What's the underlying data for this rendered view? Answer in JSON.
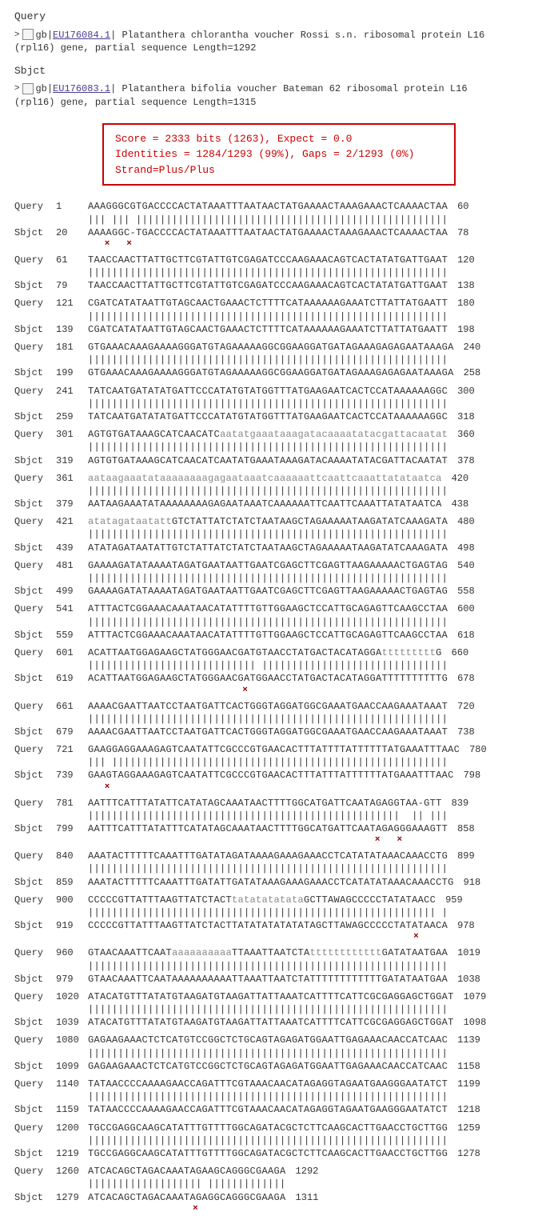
{
  "query_section": {
    "label": "Query",
    "caret": ">",
    "accession_prefix": "gb|",
    "accession": "EU176084.1",
    "accession_suffix": "|",
    "desc_line1": "  Platanthera chlorantha voucher Rossi s.n. ribosomal protein L16",
    "desc_line2": "(rpl16) gene, partial sequence   Length=1292"
  },
  "sbjct_section": {
    "label": "Sbjct",
    "caret": ">",
    "accession_prefix": "gb|",
    "accession": "EU176083.1",
    "accession_suffix": "|",
    "desc_line1": "  Platanthera bifolia voucher Bateman 62 ribosomal protein L16",
    "desc_line2": "(rpl16) gene, partial sequence   Length=1315"
  },
  "score_box": {
    "line1": "Score = 2333 bits (1263),  Expect = 0.0",
    "line2": "Identities = 1284/1293 (99%), Gaps = 2/1293 (0%)",
    "line3": "Strand=Plus/Plus"
  },
  "columns": {
    "origin_query": "Query",
    "origin_sbjct": "Sbjct"
  },
  "blocks": [
    {
      "q_start": 1,
      "q_seq": "AAAGGGCGTGACCCCACTATAAATTTAATAACTATGAAAACTAAAGAAACTCAAAACTAA",
      "q_end": 60,
      "match": "||| ||| ||||||||||||||||||||||||||||||||||||||||||||||||||||",
      "s_start": 20,
      "s_seq": "AAAAGGC-TGACCCCACTATAAATTTAATAACTATGAAAACTAAAGAAACTCAAAACTAA",
      "s_end": 78,
      "x_marks": [
        3,
        7
      ]
    },
    {
      "q_start": 61,
      "q_seq": "TAACCAACTTATTGCTTCGTATTGTCGAGATCCCAAGAAACAGTCACTATATGATTGAAT",
      "q_end": 120,
      "match": "||||||||||||||||||||||||||||||||||||||||||||||||||||||||||||",
      "s_start": 79,
      "s_seq": "TAACCAACTTATTGCTTCGTATTGTCGAGATCCCAAGAAACAGTCACTATATGATTGAAT",
      "s_end": 138
    },
    {
      "q_start": 121,
      "q_seq": "CGATCATATAATTGTAGCAACTGAAACTCTTTTCATAAAAAAGAAATCTTATTATGAATT",
      "q_end": 180,
      "match": "||||||||||||||||||||||||||||||||||||||||||||||||||||||||||||",
      "s_start": 139,
      "s_seq": "CGATCATATAATTGTAGCAACTGAAACTCTTTTCATAAAAAAGAAATCTTATTATGAATT",
      "s_end": 198
    },
    {
      "q_start": 181,
      "q_seq": "GTGAAACAAAGAAAAGGGATGTAGAAAAAGGCGGAAGGATGATAGAAAGAGAGAATAAAGA",
      "q_end": 240,
      "match": "||||||||||||||||||||||||||||||||||||||||||||||||||||||||||||",
      "s_start": 199,
      "s_seq": "GTGAAACAAAGAAAAGGGATGTAGAAAAAGGCGGAAGGATGATAGAAAGAGAGAATAAAGA",
      "s_end": 258
    },
    {
      "q_start": 241,
      "q_seq": "TATCAATGATATATGATTCCCATATGTATGGTTTATGAAGAATCACTCCATAAAAAAGGC",
      "q_end": 300,
      "match": "||||||||||||||||||||||||||||||||||||||||||||||||||||||||||||",
      "s_start": 259,
      "s_seq": "TATCAATGATATATGATTCCCATATGTATGGTTTATGAAGAATCACTCCATAAAAAAGGC",
      "s_end": 318
    },
    {
      "q_start": 301,
      "q_seq": "AGTGTGATAAAGCATCAACATC",
      "q_lower": "aatatgaaataaagatacaaaatatacgattacaatat",
      "q_end": 360,
      "match": "||||||||||||||||||||||||||||||||||||||||||||||||||||||||||||",
      "s_start": 319,
      "s_seq": "AGTGTGATAAAGCATCAACATCAATATGAAATAAAGATACAAAATATACGATTACAATAT",
      "s_end": 378
    },
    {
      "q_start": 361,
      "q_seq_full_lower": "aataagaaatataaaaaaaagagaataaatcaaaaaattcaattcaaattatataatca",
      "q_end": 420,
      "match": "||||||||||||||||||||||||||||||||||||||||||||||||||||||||||||",
      "s_start": 379,
      "s_seq": "AATAAGAAATATAAAAAAAAGAGAATAAATCAAAAAATTCAATTCAAATTATATAATCA",
      "s_end": 438
    },
    {
      "q_start": 421,
      "q_pre_lower": "atatagataatatt",
      "q_seq": "GTCTATTATCTATCTAATAAGCTAGAAAAATAAGATATCAAAGATA",
      "q_end": 480,
      "match": "||||||||||||||||||||||||||||||||||||||||||||||||||||||||||||",
      "s_start": 439,
      "s_seq": "ATATAGATAATATTGTCTATTATCTATCTAATAAGCTAGAAAAATAAGATATCAAAGATA",
      "s_end": 498
    },
    {
      "q_start": 481,
      "q_seq": "GAAAAGATATAAAATAGATGAATAATTGAATCGAGCTTCGAGTTAAGAAAAACTGAGTAG",
      "q_end": 540,
      "match": "||||||||||||||||||||||||||||||||||||||||||||||||||||||||||||",
      "s_start": 499,
      "s_seq": "GAAAAGATATAAAATAGATGAATAATTGAATCGAGCTTCGAGTTAAGAAAAACTGAGTAG",
      "s_end": 558
    },
    {
      "q_start": 541,
      "q_seq": "ATTTACTCGGAAACAAATAACATATTTTGTTGGAAGCTCCATTGCAGAGTTCAAGCCTAA",
      "q_end": 600,
      "match": "||||||||||||||||||||||||||||||||||||||||||||||||||||||||||||",
      "s_start": 559,
      "s_seq": "ATTTACTCGGAAACAAATAACATATTTTGTTGGAAGCTCCATTGCAGAGTTCAAGCCTAA",
      "s_end": 618
    },
    {
      "q_start": 601,
      "q_seq": "ACATTAATGGAGAAGCTATGGGAACGATGTAACCTATGACTACATAGGA",
      "q_lower": "ttttttttt",
      "q_post": "G",
      "q_end": 660,
      "match": "|||||||||||||||||||||||||||| |||||||||||||||||||||||||||||||",
      "s_start": 619,
      "s_seq": "ACATTAATGGAGAAGCTATGGGAACGATGGAACCTATGACTACATAGGATTTTTTTTTTG",
      "s_end": 678,
      "x_marks": [
        28
      ]
    },
    {
      "q_start": 661,
      "q_seq": "AAAACGAATTAATCCTAATGATTCACTGGGTAGGATGGCGAAATGAACCAAGAAATAAAT",
      "q_end": 720,
      "match": "||||||||||||||||||||||||||||||||||||||||||||||||||||||||||||",
      "s_start": 679,
      "s_seq": "AAAACGAATTAATCCTAATGATTCACTGGGTAGGATGGCGAAATGAACCAAGAAATAAAT",
      "s_end": 738
    },
    {
      "q_start": 721,
      "q_seq": "GAAGGAGGAAAGAGTCAATATTCGCCCGTGAACACTTTATTTTATTTTTTATGAAATTTAAC",
      "q_end": 780,
      "match": "||| ||||||||||||||||||||||||||||||||||||||||||||||||||||||||",
      "s_start": 739,
      "s_seq": "GAAGTAGGAAAGAGTCAATATTCGCCCGTGAACACTTTATTTATTTTTTATGAAATTTAAC",
      "s_end": 798,
      "x_marks": [
        3
      ]
    },
    {
      "q_start": 781,
      "q_seq": "AATTTCATTTATATTCATATAGCAAATAACTTTTGGCATGATTCAATAGAGGTAA-GTT",
      "q_end": 839,
      "match": "||||||||||||||||||||||||||||||||||||||||||||||||||||  || |||",
      "s_start": 799,
      "s_seq": "AATTTCATTTATATTTCATATAGCAAATAACTTTTGGCATGATTCAATAGAGGGAAAGTT",
      "s_end": 858,
      "x_marks": [
        52,
        56
      ]
    },
    {
      "q_start": 840,
      "q_seq": "AAATACTTTTTCAAATTTGATATAGATAAAAGAAAGAAACCTCATATATAAACAAACCTG",
      "q_end": 899,
      "match": "||||||||||||||||||||||||||||||||||||||||||||||||||||||||||||",
      "s_start": 859,
      "s_seq": "AAATACTTTTTCAAATTTGATATTGATATAAAGAAAGAAACCTCATATATAAACAAACCTG",
      "s_end": 918
    },
    {
      "q_start": 900,
      "q_seq": "CCCCCGTTATTTAAGTTATCTACT",
      "q_lower": "tatatatatata",
      "q_post": "GCTTAWAGCCCCCTATATAACC",
      "q_end": 959,
      "match": "|||||||||||||||||||||||||||||||||||||||||||||||||||||||||| |",
      "s_start": 919,
      "s_seq": "CCCCCGTTATTTAAGTTATCTACTTATATATATATATAGCTTAWAGCCCCCTATATAACA",
      "s_end": 978,
      "x_marks": [
        59
      ]
    },
    {
      "q_start": 960,
      "q_seq": "GTAACAAATTCAAT",
      "q_lower": "aaaaaaaaaa",
      "q_post": "TTAAATTAATCTA",
      "q_lower2": "tttttttttttt",
      "q_post2": "GATATAATGAA",
      "q_end": 1019,
      "match": "||||||||||||||||||||||||||||||||||||||||||||||||||||||||||||",
      "s_start": 979,
      "s_seq": "GTAACAAATTCAATAAAAAAAAAATTAAATTAATCTATTTTTTTTTTTTGATATAATGAA",
      "s_end": 1038
    },
    {
      "q_start": 1020,
      "q_seq": "ATACATGTTTATATGTAAGATGTAAGATTATTAAATCATTTTCATTCGCGAGGAGCTGGAT",
      "q_end": 1079,
      "match": "||||||||||||||||||||||||||||||||||||||||||||||||||||||||||||",
      "s_start": 1039,
      "s_seq": "ATACATGTTTATATGTAAGATGTAAGATTATTAAATCATTTTCATTCGCGAGGAGCTGGAT",
      "s_end": 1098
    },
    {
      "q_start": 1080,
      "q_seq": "GAGAAGAAACTCTCATGTCCGGCTCTGCAGTAGAGATGGAATTGAGAAACAACCATCAAC",
      "q_end": 1139,
      "match": "||||||||||||||||||||||||||||||||||||||||||||||||||||||||||||",
      "s_start": 1099,
      "s_seq": "GAGAAGAAACTCTCATGTCCGGCTCTGCAGTAGAGATGGAATTGAGAAACAACCATCAAC",
      "s_end": 1158
    },
    {
      "q_start": 1140,
      "q_seq": "TATAACCCCAAAAGAACCAGATTTCGTAAACAACATAGAGGTAGAATGAAGGGAATATCT",
      "q_end": 1199,
      "match": "||||||||||||||||||||||||||||||||||||||||||||||||||||||||||||",
      "s_start": 1159,
      "s_seq": "TATAACCCCAAAAGAACCAGATTTCGTAAACAACATAGAGGTAGAATGAAGGGAATATCT",
      "s_end": 1218
    },
    {
      "q_start": 1200,
      "q_seq": "TGCCGAGGCAAGCATATTTGTTTTGGCAGATACGCTCTTCAAGCACTTGAACCTGCTTGG",
      "q_end": 1259,
      "match": "||||||||||||||||||||||||||||||||||||||||||||||||||||||||||||",
      "s_start": 1219,
      "s_seq": "TGCCGAGGCAAGCATATTTGTTTTGGCAGATACGCTCTTCAAGCACTTGAACCTGCTTGG",
      "s_end": 1278
    },
    {
      "q_start": 1260,
      "q_seq": "ATCACAGCTAGACAAATAGAAGCAGGGCGAAGA",
      "q_end": 1292,
      "match": "||||||||||||||||||| |||||||||||||",
      "s_start": 1279,
      "s_seq": "ATCACAGCTAGACAAATAGAGGCAGGGCGAAGA",
      "s_end": 1311,
      "x_marks": [
        19
      ]
    }
  ]
}
